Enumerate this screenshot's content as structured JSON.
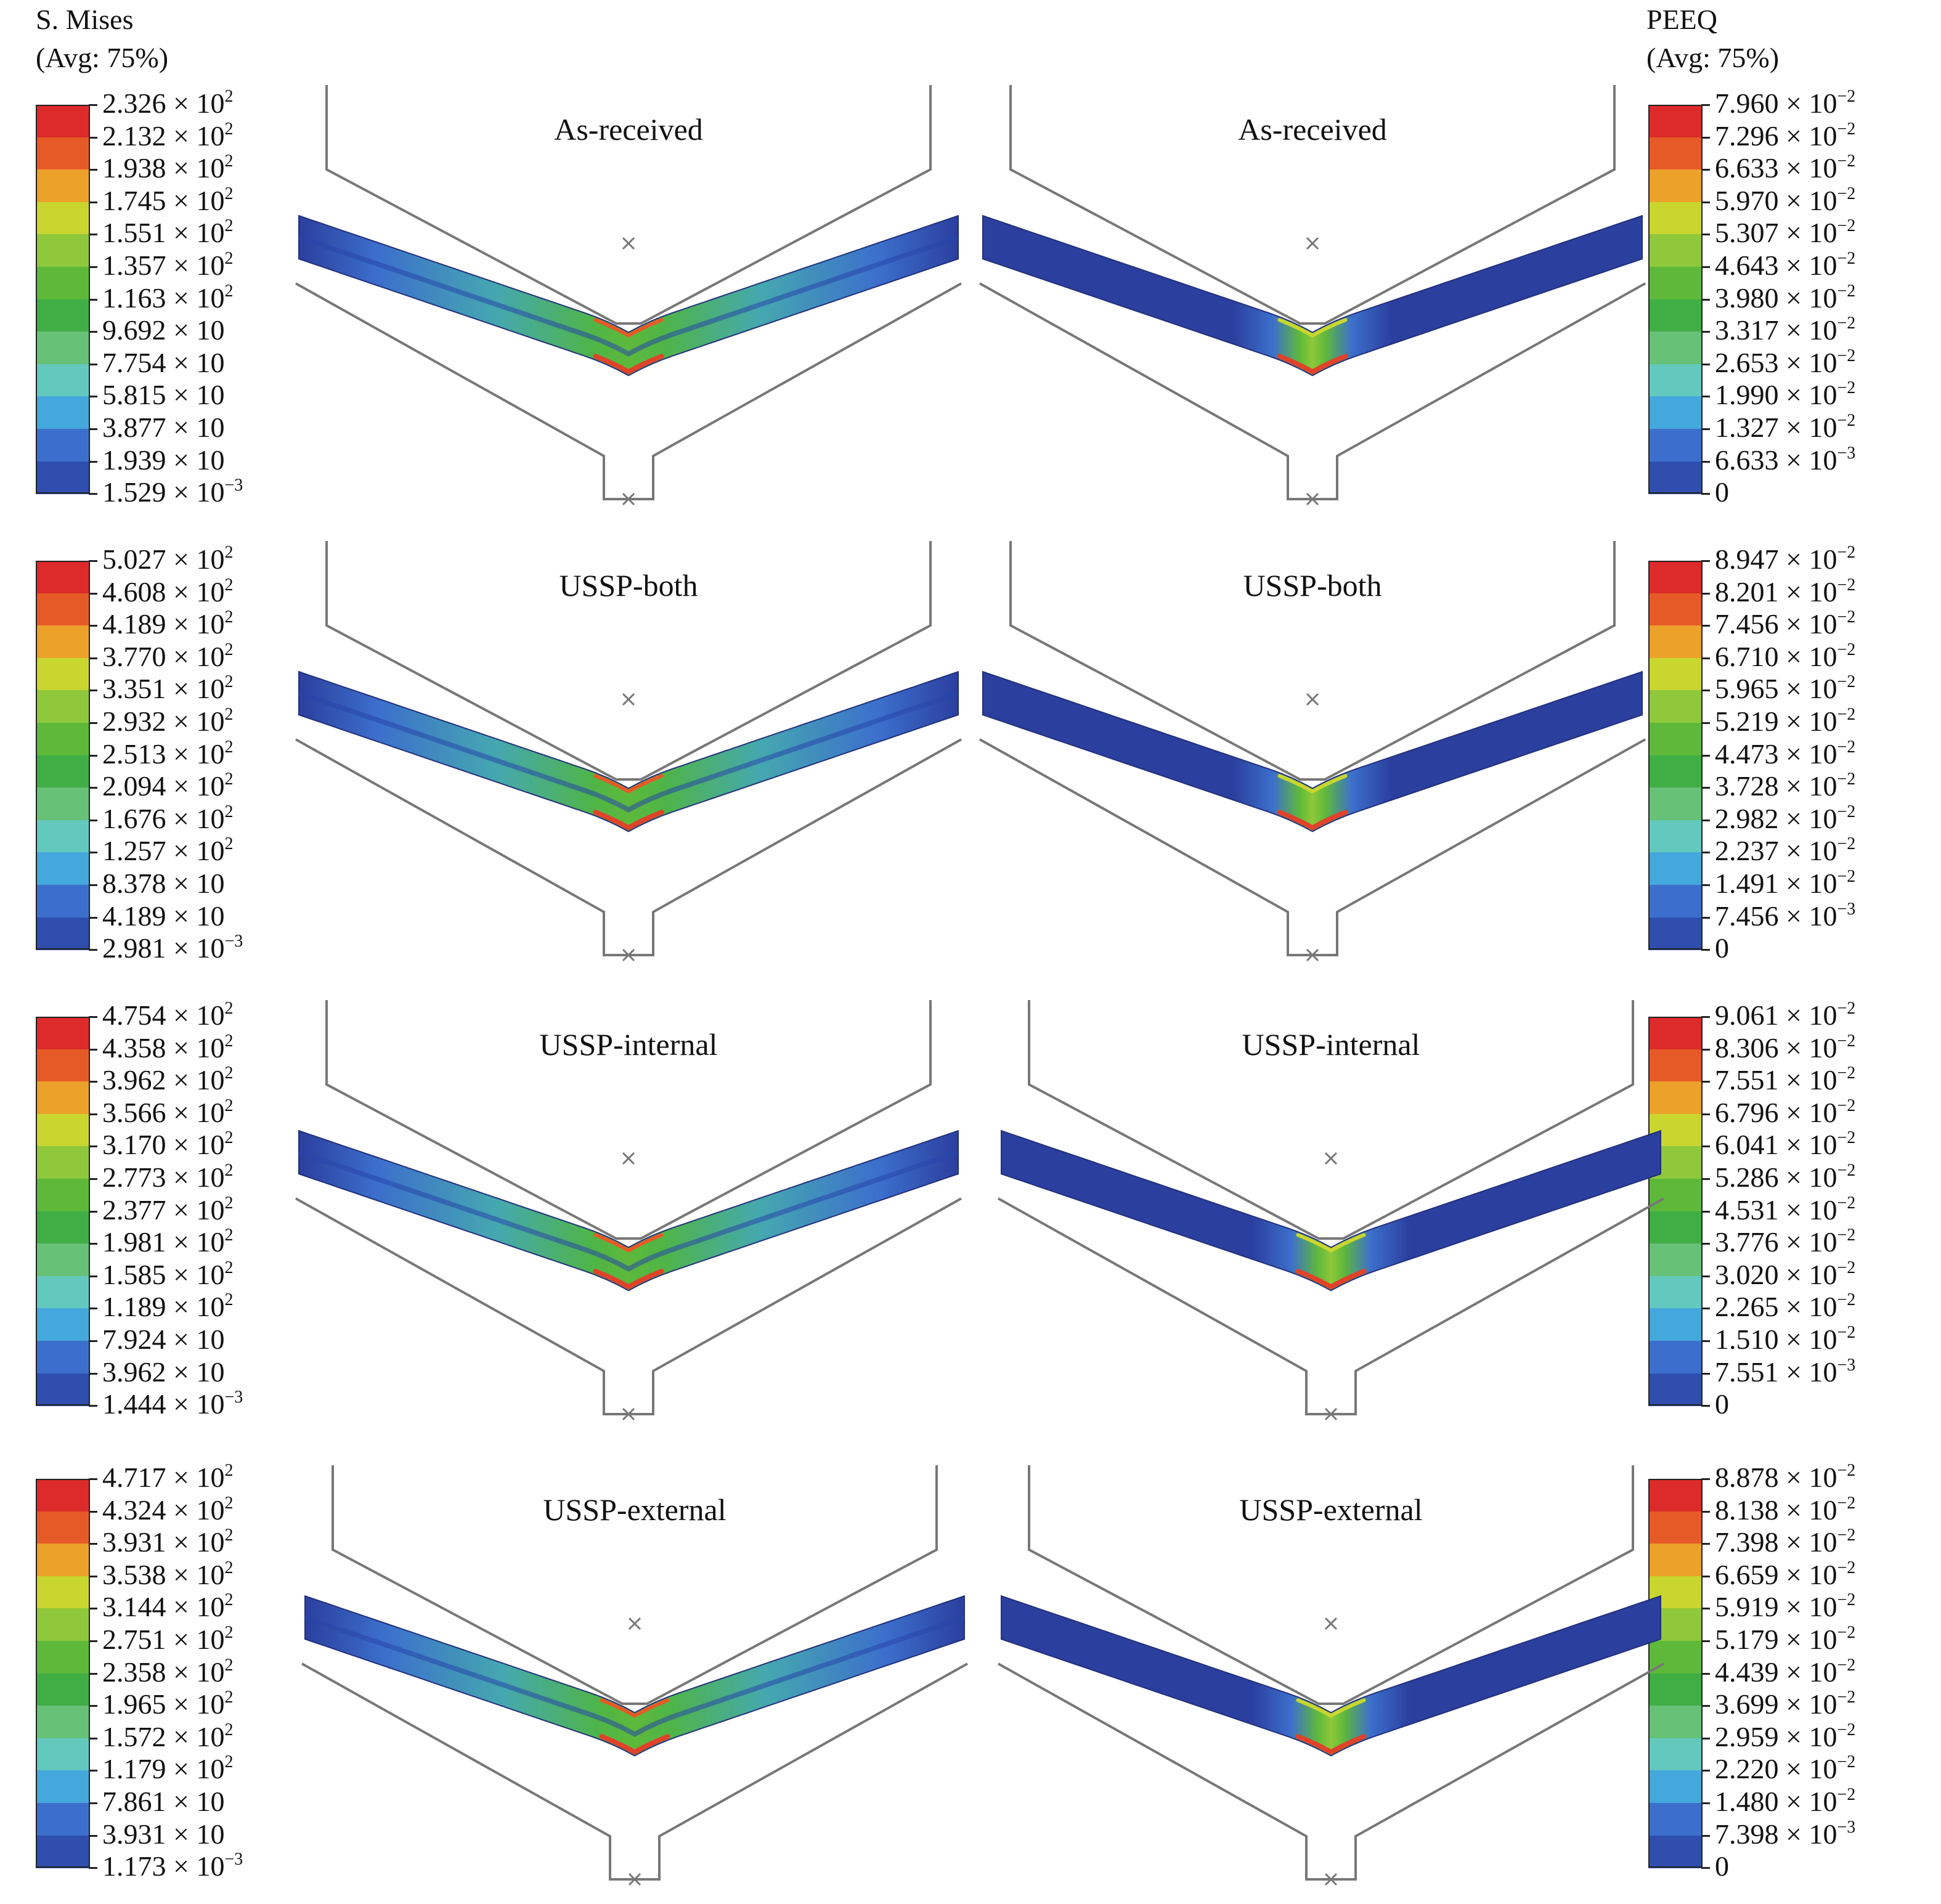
{
  "headers": {
    "left_title": "S. Mises",
    "left_subtitle": "(Avg: 75%)",
    "right_title": "PEEQ",
    "right_subtitle": "(Avg: 75%)"
  },
  "colors": [
    "#dd2a2a",
    "#e65a28",
    "#eba12a",
    "#c9d630",
    "#8fc83a",
    "#5eb93b",
    "#3fae45",
    "#67c176",
    "#63c8be",
    "#45a8dc",
    "#3c6fcc",
    "#2f4eae"
  ],
  "rows": [
    {
      "left_panel_title": "As-received",
      "right_panel_title": "As-received",
      "mises_labels": [
        {
          "m": "2.326",
          "e": "2"
        },
        {
          "m": "2.132",
          "e": "2"
        },
        {
          "m": "1.938",
          "e": "2"
        },
        {
          "m": "1.745",
          "e": "2"
        },
        {
          "m": "1.551",
          "e": "2"
        },
        {
          "m": "1.357",
          "e": "2"
        },
        {
          "m": "1.163",
          "e": "2"
        },
        {
          "m": "9.692",
          "e": ""
        },
        {
          "m": "7.754",
          "e": ""
        },
        {
          "m": "5.815",
          "e": ""
        },
        {
          "m": "3.877",
          "e": ""
        },
        {
          "m": "1.939",
          "e": ""
        },
        {
          "m": "1.529",
          "e": "−3"
        }
      ],
      "peeq_labels": [
        {
          "m": "7.960",
          "e": "−2"
        },
        {
          "m": "7.296",
          "e": "−2"
        },
        {
          "m": "6.633",
          "e": "−2"
        },
        {
          "m": "5.970",
          "e": "−2"
        },
        {
          "m": "5.307",
          "e": "−2"
        },
        {
          "m": "4.643",
          "e": "−2"
        },
        {
          "m": "3.980",
          "e": "−2"
        },
        {
          "m": "3.317",
          "e": "−2"
        },
        {
          "m": "2.653",
          "e": "−2"
        },
        {
          "m": "1.990",
          "e": "−2"
        },
        {
          "m": "1.327",
          "e": "−2"
        },
        {
          "m": "6.633",
          "e": "−3"
        },
        {
          "m": "0",
          "e": null
        }
      ]
    },
    {
      "left_panel_title": "USSP-both",
      "right_panel_title": "USSP-both",
      "mises_labels": [
        {
          "m": "5.027",
          "e": "2"
        },
        {
          "m": "4.608",
          "e": "2"
        },
        {
          "m": "4.189",
          "e": "2"
        },
        {
          "m": "3.770",
          "e": "2"
        },
        {
          "m": "3.351",
          "e": "2"
        },
        {
          "m": "2.932",
          "e": "2"
        },
        {
          "m": "2.513",
          "e": "2"
        },
        {
          "m": "2.094",
          "e": "2"
        },
        {
          "m": "1.676",
          "e": "2"
        },
        {
          "m": "1.257",
          "e": "2"
        },
        {
          "m": "8.378",
          "e": ""
        },
        {
          "m": "4.189",
          "e": ""
        },
        {
          "m": "2.981",
          "e": "−3"
        }
      ],
      "peeq_labels": [
        {
          "m": "8.947",
          "e": "−2"
        },
        {
          "m": "8.201",
          "e": "−2"
        },
        {
          "m": "7.456",
          "e": "−2"
        },
        {
          "m": "6.710",
          "e": "−2"
        },
        {
          "m": "5.965",
          "e": "−2"
        },
        {
          "m": "5.219",
          "e": "−2"
        },
        {
          "m": "4.473",
          "e": "−2"
        },
        {
          "m": "3.728",
          "e": "−2"
        },
        {
          "m": "2.982",
          "e": "−2"
        },
        {
          "m": "2.237",
          "e": "−2"
        },
        {
          "m": "1.491",
          "e": "−2"
        },
        {
          "m": "7.456",
          "e": "−3"
        },
        {
          "m": "0",
          "e": null
        }
      ]
    },
    {
      "left_panel_title": "USSP-internal",
      "right_panel_title": "USSP-internal",
      "mises_labels": [
        {
          "m": "4.754",
          "e": "2"
        },
        {
          "m": "4.358",
          "e": "2"
        },
        {
          "m": "3.962",
          "e": "2"
        },
        {
          "m": "3.566",
          "e": "2"
        },
        {
          "m": "3.170",
          "e": "2"
        },
        {
          "m": "2.773",
          "e": "2"
        },
        {
          "m": "2.377",
          "e": "2"
        },
        {
          "m": "1.981",
          "e": "2"
        },
        {
          "m": "1.585",
          "e": "2"
        },
        {
          "m": "1.189",
          "e": "2"
        },
        {
          "m": "7.924",
          "e": ""
        },
        {
          "m": "3.962",
          "e": ""
        },
        {
          "m": "1.444",
          "e": "−3"
        }
      ],
      "peeq_labels": [
        {
          "m": "9.061",
          "e": "−2"
        },
        {
          "m": "8.306",
          "e": "−2"
        },
        {
          "m": "7.551",
          "e": "−2"
        },
        {
          "m": "6.796",
          "e": "−2"
        },
        {
          "m": "6.041",
          "e": "−2"
        },
        {
          "m": "5.286",
          "e": "−2"
        },
        {
          "m": "4.531",
          "e": "−2"
        },
        {
          "m": "3.776",
          "e": "−2"
        },
        {
          "m": "3.020",
          "e": "−2"
        },
        {
          "m": "2.265",
          "e": "−2"
        },
        {
          "m": "1.510",
          "e": "−2"
        },
        {
          "m": "7.551",
          "e": "−3"
        },
        {
          "m": "0",
          "e": null
        }
      ]
    },
    {
      "left_panel_title": "USSP-external",
      "right_panel_title": "USSP-external",
      "mises_labels": [
        {
          "m": "4.717",
          "e": "2"
        },
        {
          "m": "4.324",
          "e": "2"
        },
        {
          "m": "3.931",
          "e": "2"
        },
        {
          "m": "3.538",
          "e": "2"
        },
        {
          "m": "3.144",
          "e": "2"
        },
        {
          "m": "2.751",
          "e": "2"
        },
        {
          "m": "2.358",
          "e": "2"
        },
        {
          "m": "1.965",
          "e": "2"
        },
        {
          "m": "1.572",
          "e": "2"
        },
        {
          "m": "1.179",
          "e": "2"
        },
        {
          "m": "7.861",
          "e": ""
        },
        {
          "m": "3.931",
          "e": ""
        },
        {
          "m": "1.173",
          "e": "−3"
        }
      ],
      "peeq_labels": [
        {
          "m": "8.878",
          "e": "−2"
        },
        {
          "m": "8.138",
          "e": "−2"
        },
        {
          "m": "7.398",
          "e": "−2"
        },
        {
          "m": "6.659",
          "e": "−2"
        },
        {
          "m": "5.919",
          "e": "−2"
        },
        {
          "m": "5.179",
          "e": "−2"
        },
        {
          "m": "4.439",
          "e": "−2"
        },
        {
          "m": "3.699",
          "e": "−2"
        },
        {
          "m": "2.959",
          "e": "−2"
        },
        {
          "m": "2.220",
          "e": "−2"
        },
        {
          "m": "1.480",
          "e": "−2"
        },
        {
          "m": "7.398",
          "e": "−3"
        },
        {
          "m": "0",
          "e": null
        }
      ]
    }
  ]
}
